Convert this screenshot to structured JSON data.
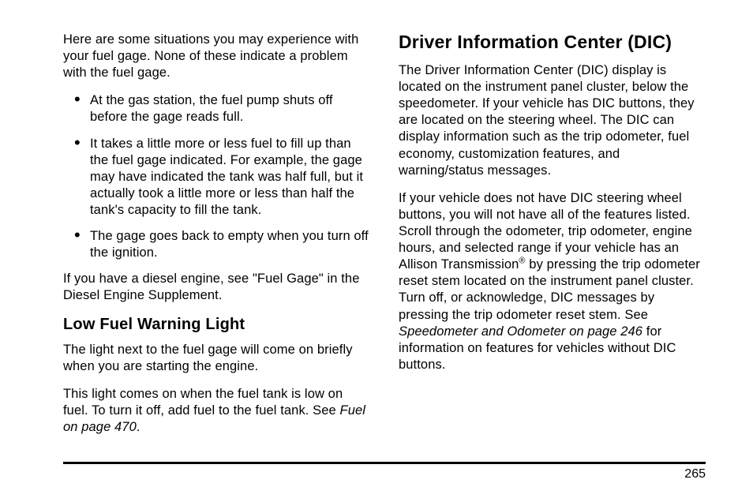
{
  "left": {
    "intro": "Here are some situations you may experience with your fuel gage. None of these indicate a problem with the fuel gage.",
    "bullets": [
      "At the gas station, the fuel pump shuts off before the gage reads full.",
      "It takes a little more or less fuel to fill up than the fuel gage indicated. For example, the gage may have indicated the tank was half full, but it actually took a little more or less than half the tank's capacity to fill the tank.",
      "The gage goes back to empty when you turn off the ignition."
    ],
    "diesel_note": "If you have a diesel engine, see \"Fuel Gage\" in the Diesel Engine Supplement.",
    "h2": "Low Fuel Warning Light",
    "lowfuel_p1": "The light next to the fuel gage will come on briefly when you are starting the engine.",
    "lowfuel_p2_a": "This light comes on when the fuel tank is low on fuel. To turn it off, add fuel to the fuel tank. See ",
    "lowfuel_p2_ref": "Fuel on page 470",
    "lowfuel_p2_b": "."
  },
  "right": {
    "h1": "Driver Information Center (DIC)",
    "p1": "The Driver Information Center (DIC) display is located on the instrument panel cluster, below the speedometer. If your vehicle has DIC buttons, they are located on the steering wheel. The DIC can display information such as the trip odometer, fuel economy, customization features, and warning/status messages.",
    "p2_a": "If your vehicle does not have DIC steering wheel buttons, you will not have all of the features listed. Scroll through the odometer, trip odometer, engine hours, and selected range if your vehicle has an Allison Transmission",
    "p2_reg": "®",
    "p2_b": " by pressing the trip odometer reset stem located on the instrument panel cluster. Turn off, or acknowledge, DIC messages by pressing the trip odometer reset stem. See ",
    "p2_ref": "Speedometer and Odometer on page 246",
    "p2_c": " for information on features for vehicles without DIC buttons."
  },
  "page_number": "265"
}
